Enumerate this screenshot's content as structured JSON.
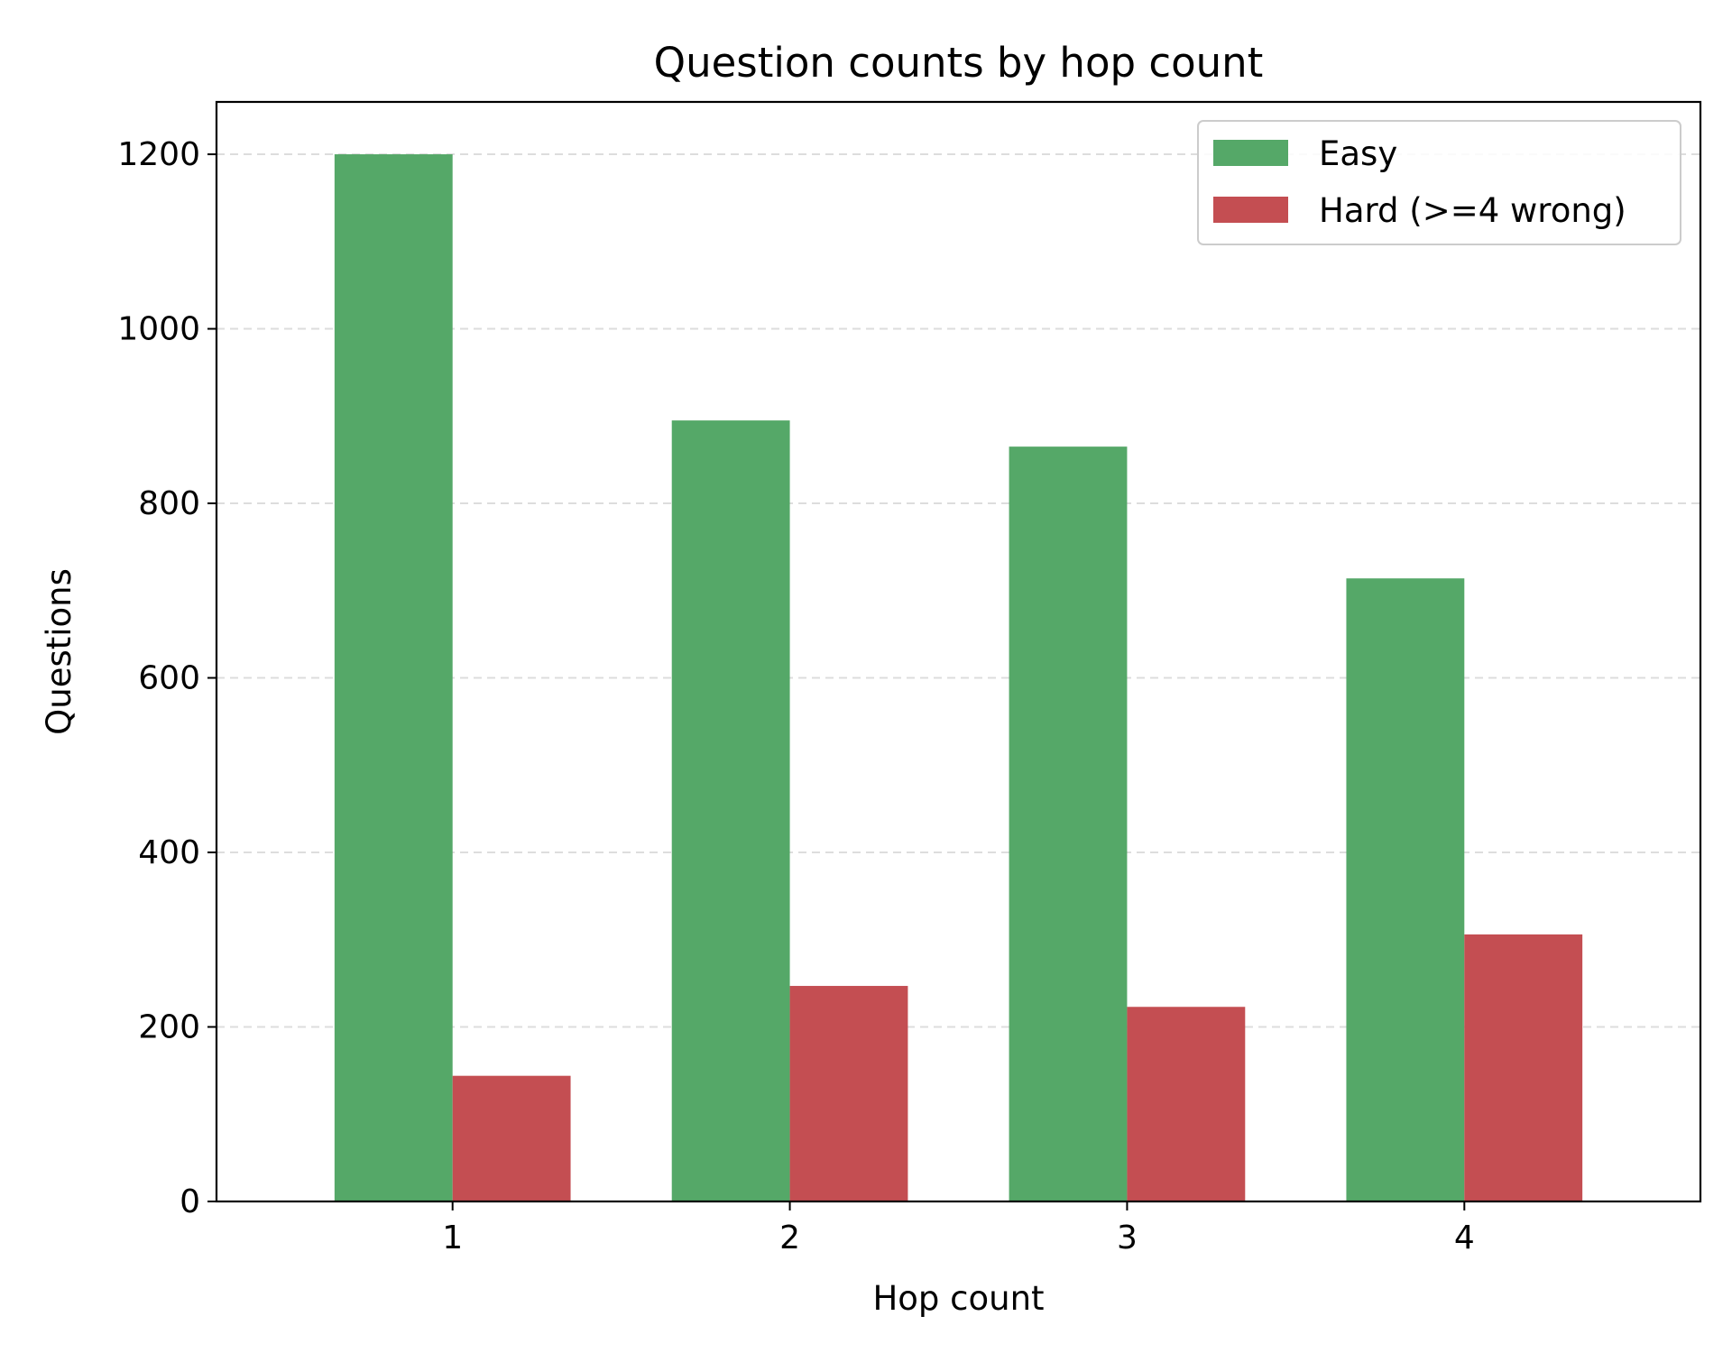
{
  "chart_data": {
    "type": "bar",
    "title": "Question counts by hop count",
    "xlabel": "Hop count",
    "ylabel": "Questions",
    "categories": [
      "1",
      "2",
      "3",
      "4"
    ],
    "series": [
      {
        "name": "Easy",
        "values": [
          1200,
          895,
          865,
          714
        ],
        "color": "#55a868"
      },
      {
        "name": "Hard (>=4 wrong)",
        "values": [
          144,
          247,
          223,
          306
        ],
        "color": "#c44e52"
      }
    ],
    "ylim": [
      0,
      1260
    ],
    "yticks": [
      0,
      200,
      400,
      600,
      800,
      1000,
      1200
    ],
    "grid": "y-dashed",
    "legend_position": "top-right"
  }
}
